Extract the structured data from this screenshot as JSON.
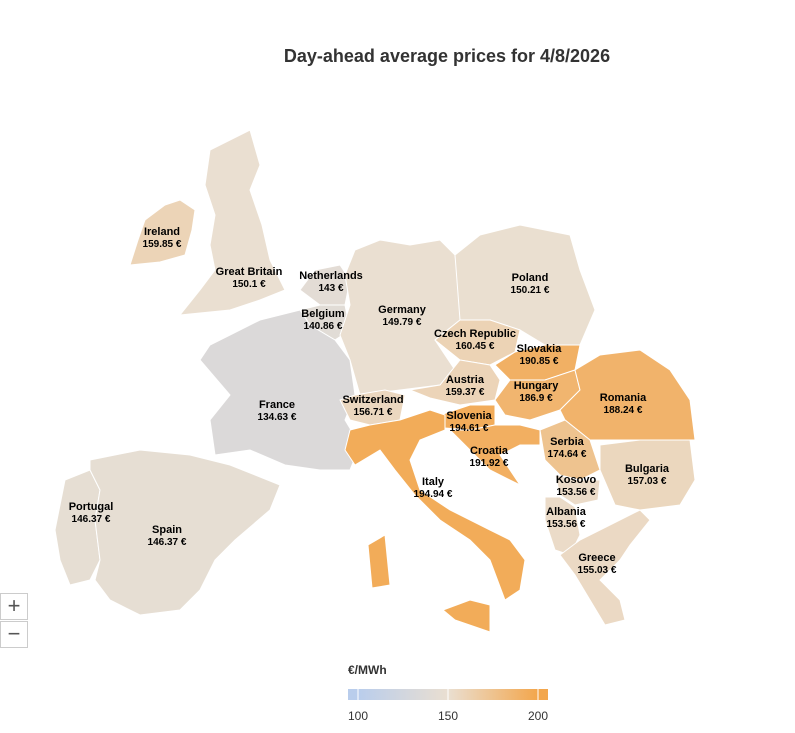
{
  "chart_data": {
    "type": "map",
    "title": "Day-ahead average prices for 4/8/2026",
    "categories": [
      "Ireland",
      "Great Britain",
      "Netherlands",
      "Belgium",
      "Germany",
      "Poland",
      "Czech Republic",
      "Slovakia",
      "Austria",
      "Hungary",
      "Romania",
      "France",
      "Switzerland",
      "Slovenia",
      "Croatia",
      "Serbia",
      "Bulgaria",
      "Italy",
      "Kosovo",
      "Albania",
      "Portugal",
      "Spain",
      "Greece"
    ],
    "values": [
      159.85,
      150.1,
      143,
      140.86,
      149.79,
      150.21,
      160.45,
      190.85,
      159.37,
      186.9,
      188.24,
      134.63,
      156.71,
      194.61,
      191.92,
      174.64,
      157.03,
      194.94,
      153.56,
      153.56,
      146.37,
      146.37,
      155.03
    ],
    "value_labels": [
      "159.85 €",
      "150.1 €",
      "143 €",
      "140.86 €",
      "149.79 €",
      "150.21 €",
      "160.45 €",
      "190.85 €",
      "159.37 €",
      "186.9 €",
      "188.24 €",
      "134.63 €",
      "156.71 €",
      "194.61 €",
      "191.92 €",
      "174.64 €",
      "157.03 €",
      "194.94 €",
      "153.56 €",
      "153.56 €",
      "146.37 €",
      "146.37 €",
      "155.03 €"
    ],
    "color_scale": {
      "title": "€/MWh",
      "lim": [
        100,
        200
      ],
      "ticks": [
        100,
        150,
        200
      ],
      "colors": [
        "#b9cdec",
        "#eadfd1",
        "#f3a64c"
      ]
    },
    "zoom_controls": [
      "+",
      "−"
    ]
  }
}
